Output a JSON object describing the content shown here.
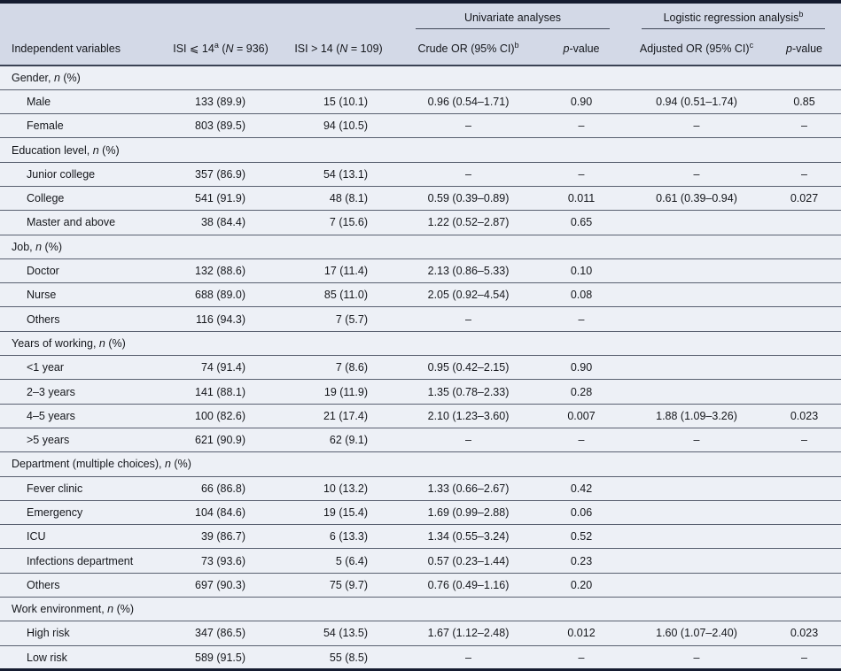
{
  "colors": {
    "page_background": "#edf0f6",
    "header_band": "#d3d9e7",
    "top_bottom_bar": "#151c30",
    "row_rule": "#596070",
    "text": "#15171c"
  },
  "table": {
    "header": {
      "univariate_group": "Univariate analyses",
      "logistic_group": "Logistic regression analysis<sup>b</sup>",
      "columns": [
        "Independent variables",
        "ISI ⩽ 14<sup>a</sup> (<i>N</i> = 936)",
        "ISI > 14 (<i>N</i> = 109)",
        "Crude OR (95% CI)<sup>b</sup>",
        "<i>p</i>-value",
        "Adjusted OR (95% CI)<sup>c</sup>",
        "<i>p</i>-value"
      ]
    },
    "sections": [
      {
        "label": "Gender, <i>n</i> (%)",
        "rows": [
          {
            "cells": [
              "Male",
              "133 (89.9)",
              "15 (10.1)",
              "0.96 (0.54–1.71)",
              "0.90",
              "0.94 (0.51–1.74)",
              "0.85"
            ]
          },
          {
            "cells": [
              "Female",
              "803 (89.5)",
              "94 (10.5)",
              "–",
              "–",
              "–",
              "–"
            ]
          }
        ]
      },
      {
        "label": "Education level, <i>n</i> (%)",
        "rows": [
          {
            "cells": [
              "Junior college",
              "357 (86.9)",
              "54 (13.1)",
              "–",
              "–",
              "–",
              "–"
            ]
          },
          {
            "cells": [
              "College",
              "541 (91.9)",
              "48 (8.1)",
              "0.59 (0.39–0.89)",
              "0.011",
              "0.61 (0.39–0.94)",
              "0.027"
            ]
          },
          {
            "cells": [
              "Master and above",
              "38 (84.4)",
              "7 (15.6)",
              "1.22 (0.52–2.87)",
              "0.65",
              "",
              ""
            ]
          }
        ]
      },
      {
        "label": "Job, <i>n</i> (%)",
        "rows": [
          {
            "cells": [
              "Doctor",
              "132 (88.6)",
              "17 (11.4)",
              "2.13 (0.86–5.33)",
              "0.10",
              "",
              ""
            ]
          },
          {
            "cells": [
              "Nurse",
              "688 (89.0)",
              "85 (11.0)",
              "2.05 (0.92–4.54)",
              "0.08",
              "",
              ""
            ]
          },
          {
            "cells": [
              "Others",
              "116 (94.3)",
              "7 (5.7)",
              "–",
              "–",
              "",
              ""
            ]
          }
        ]
      },
      {
        "label": "Years of working, <i>n</i> (%)",
        "rows": [
          {
            "cells": [
              "<1 year",
              "74 (91.4)",
              "7 (8.6)",
              "0.95 (0.42–2.15)",
              "0.90",
              "",
              ""
            ]
          },
          {
            "cells": [
              "2–3 years",
              "141 (88.1)",
              "19 (11.9)",
              "1.35 (0.78–2.33)",
              "0.28",
              "",
              ""
            ]
          },
          {
            "cells": [
              "4–5 years",
              "100 (82.6)",
              "21 (17.4)",
              "2.10 (1.23–3.60)",
              "0.007",
              "1.88 (1.09–3.26)",
              "0.023"
            ]
          },
          {
            "cells": [
              ">5 years",
              "621 (90.9)",
              "62 (9.1)",
              "–",
              "–",
              "–",
              "–"
            ]
          }
        ]
      },
      {
        "label": "Department (multiple choices), <i>n</i> (%)",
        "rows": [
          {
            "cells": [
              "Fever clinic",
              "66 (86.8)",
              "10 (13.2)",
              "1.33 (0.66–2.67)",
              "0.42",
              "",
              ""
            ]
          },
          {
            "cells": [
              "Emergency",
              "104 (84.6)",
              "19 (15.4)",
              "1.69 (0.99–2.88)",
              "0.06",
              "",
              ""
            ]
          },
          {
            "cells": [
              "ICU",
              "39 (86.7)",
              "6 (13.3)",
              "1.34 (0.55–3.24)",
              "0.52",
              "",
              ""
            ]
          },
          {
            "cells": [
              "Infections department",
              "73 (93.6)",
              "5 (6.4)",
              "0.57 (0.23–1.44)",
              "0.23",
              "",
              ""
            ]
          },
          {
            "cells": [
              "Others",
              "697 (90.3)",
              "75 (9.7)",
              "0.76 (0.49–1.16)",
              "0.20",
              "",
              ""
            ]
          }
        ]
      },
      {
        "label": "Work environment, <i>n</i> (%)",
        "rows": [
          {
            "cells": [
              "High risk",
              "347 (86.5)",
              "54 (13.5)",
              "1.67 (1.12–2.48)",
              "0.012",
              "1.60 (1.07–2.40)",
              "0.023"
            ]
          },
          {
            "cells": [
              "Low risk",
              "589 (91.5)",
              "55 (8.5)",
              "–",
              "–",
              "–",
              "–"
            ]
          }
        ]
      }
    ]
  }
}
